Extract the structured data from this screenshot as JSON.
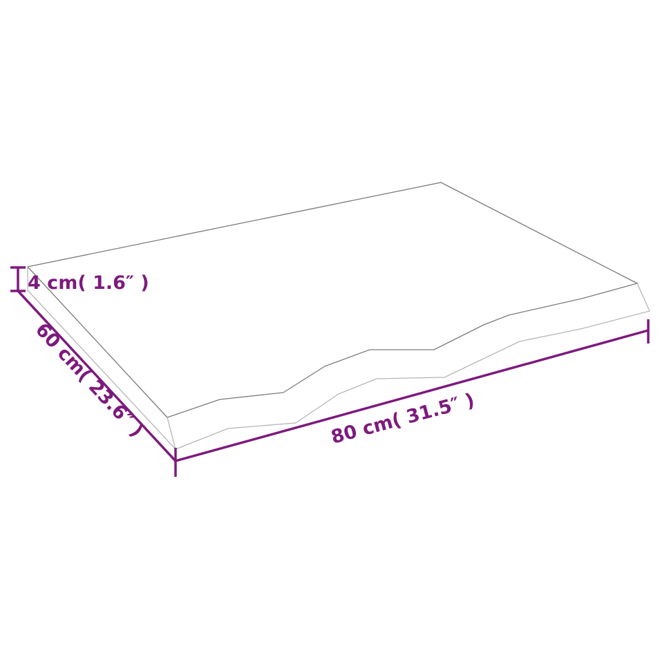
{
  "colors": {
    "dimension": "#7d1a7d",
    "outline_dark": "#7a7a7a",
    "outline_light": "#b5b5b5",
    "background": "#ffffff"
  },
  "dimensions": {
    "thickness": "4 cm( 1.6″  )",
    "depth": "60 cm( 23.6″  )",
    "width": "80 cm( 31.5″  )"
  }
}
